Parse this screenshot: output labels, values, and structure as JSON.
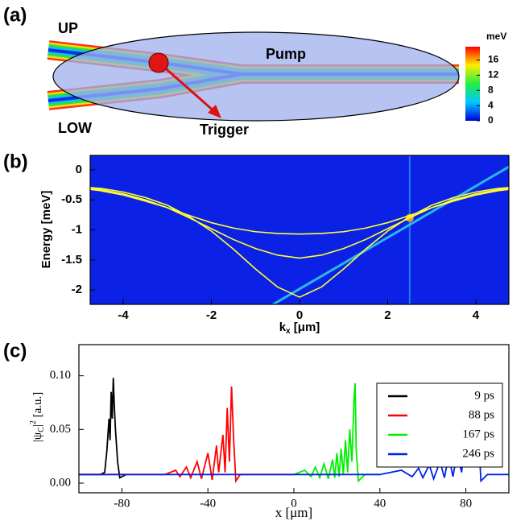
{
  "panel_a": {
    "label": "(a)",
    "up": "UP",
    "low": "LOW",
    "pump": "Pump",
    "trigger": "Trigger",
    "colorbar": {
      "unit": "meV",
      "lim": [
        0,
        19.5
      ],
      "ticks": [
        16,
        12,
        8,
        4,
        0
      ]
    }
  },
  "chart_data": [
    {
      "type": "line",
      "label": "(b)",
      "ylabel": "Energy [meV]",
      "xlabel": [
        "k",
        "x",
        " [μm]"
      ],
      "plot_background": "#0b22e6",
      "xlim": [
        -4.75,
        4.75
      ],
      "ylim": [
        -2.24,
        0.24
      ],
      "xticks": [
        -4,
        -2,
        0,
        2,
        4
      ],
      "yticks": [
        0,
        -0.5,
        -1,
        -1.5,
        -2
      ],
      "x": [
        -5,
        -4.5,
        -4,
        -3.5,
        -3,
        -2.5,
        -2,
        -1.5,
        -1,
        -0.5,
        0,
        0.5,
        1,
        1.5,
        2,
        2.5,
        3,
        3.5,
        4,
        4.5,
        5
      ],
      "series": [
        {
          "color": "#ffff33",
          "values": [
            -0.3,
            -0.35,
            -0.42,
            -0.52,
            -0.63,
            -0.76,
            -0.88,
            -0.97,
            -1.03,
            -1.06,
            -1.07,
            -1.06,
            -1.03,
            -0.97,
            -0.88,
            -0.76,
            -0.63,
            -0.52,
            -0.42,
            -0.35,
            -0.3
          ]
        },
        {
          "color": "#ffff33",
          "values": [
            -0.29,
            -0.33,
            -0.4,
            -0.5,
            -0.63,
            -0.8,
            -0.98,
            -1.16,
            -1.31,
            -1.42,
            -1.47,
            -1.42,
            -1.31,
            -1.16,
            -0.98,
            -0.8,
            -0.63,
            -0.5,
            -0.4,
            -0.33,
            -0.29
          ]
        },
        {
          "color": "#ffff33",
          "values": [
            -0.28,
            -0.31,
            -0.37,
            -0.46,
            -0.59,
            -0.78,
            -1.02,
            -1.32,
            -1.65,
            -1.95,
            -2.12,
            -1.95,
            -1.65,
            -1.32,
            -1.02,
            -0.78,
            -0.59,
            -0.46,
            -0.37,
            -0.31,
            -0.28
          ]
        }
      ]
    },
    {
      "type": "line",
      "label": "(c)",
      "ylabel": [
        "|ψ",
        "C",
        "|",
        "2",
        " [a.u.]"
      ],
      "xlabel": "x [μm]",
      "xlim": [
        -100,
        100
      ],
      "ylim": [
        -0.009,
        0.129
      ],
      "xticks": [
        -80,
        -40,
        0,
        40,
        80
      ],
      "yticks": [
        {
          "value": 0,
          "label": "0.00"
        },
        {
          "value": 0.05,
          "label": "0.05"
        },
        {
          "value": 0.1,
          "label": "0.10"
        }
      ],
      "legend": "upper right",
      "series": [
        {
          "name": "9 ps",
          "color": "#000000",
          "x": [
            -100,
            -90,
            -88,
            -87,
            -86,
            -85.5,
            -85,
            -84.5,
            -84,
            -83.5,
            -83,
            -82,
            -81,
            -80,
            -78
          ],
          "values": [
            0.008,
            0.008,
            0.01,
            0.03,
            0.06,
            0.04,
            0.085,
            0.06,
            0.098,
            0.07,
            0.05,
            0.02,
            0.005,
            0.006,
            0.008
          ]
        },
        {
          "name": "88 ps",
          "color": "#ff0000",
          "x": [
            -100,
            -60,
            -55,
            -53,
            -50,
            -48,
            -45,
            -43,
            -40,
            -38,
            -36,
            -35,
            -33,
            -32,
            -31,
            -30,
            -29,
            -28,
            -27,
            -25,
            -20,
            0
          ],
          "values": [
            0.008,
            0.008,
            0.012,
            0.006,
            0.015,
            0.005,
            0.02,
            0.004,
            0.028,
            0.003,
            0.035,
            0.01,
            0.045,
            0.01,
            0.07,
            0.02,
            0.09,
            0.04,
            0.002,
            0.008,
            0.008,
            0.008
          ]
        },
        {
          "name": "167 ps",
          "color": "#00ee00",
          "x": [
            0,
            5,
            8,
            10,
            12,
            14,
            16,
            18,
            19,
            20,
            21,
            22,
            23,
            24,
            25,
            26,
            27,
            28,
            28.5,
            29,
            30,
            33,
            40
          ],
          "values": [
            0.008,
            0.012,
            0.006,
            0.015,
            0.005,
            0.018,
            0.004,
            0.022,
            0.005,
            0.028,
            0.006,
            0.032,
            0.008,
            0.04,
            0.01,
            0.05,
            0.02,
            0.08,
            0.093,
            0.03,
            0.002,
            0.008,
            0.008
          ]
        },
        {
          "name": "246 ps",
          "color": "#0022ee",
          "x": [
            -100,
            40,
            50,
            55,
            58,
            60,
            63,
            65,
            68,
            70,
            72,
            74,
            76,
            78,
            80,
            81,
            82,
            83,
            84,
            85,
            86,
            87,
            90,
            100
          ],
          "values": [
            0.008,
            0.008,
            0.012,
            0.006,
            0.014,
            0.005,
            0.017,
            0.004,
            0.02,
            0.005,
            0.025,
            0.006,
            0.03,
            0.01,
            0.045,
            0.015,
            0.06,
            0.03,
            0.075,
            0.091,
            0.04,
            0.002,
            0.008,
            0.008
          ]
        }
      ]
    }
  ]
}
